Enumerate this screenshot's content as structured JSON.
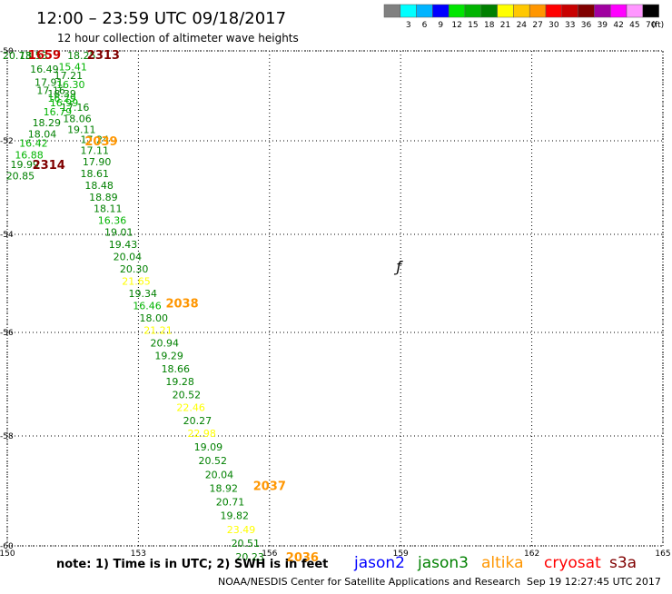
{
  "header": {
    "title": "12:00 – 23:59 UTC 09/18/2017",
    "subtitle": "12 hour collection of altimeter wave heights"
  },
  "legend": {
    "unit_label": "(ft)",
    "bins": [
      {
        "label": "",
        "color": "#808080"
      },
      {
        "label": "3",
        "color": "#00ffff"
      },
      {
        "label": "6",
        "color": "#00b4ff"
      },
      {
        "label": "9",
        "color": "#0000ff"
      },
      {
        "label": "12",
        "color": "#00e600"
      },
      {
        "label": "15",
        "color": "#00b400"
      },
      {
        "label": "18",
        "color": "#008000"
      },
      {
        "label": "21",
        "color": "#ffff00"
      },
      {
        "label": "24",
        "color": "#ffc800"
      },
      {
        "label": "27",
        "color": "#ff9600"
      },
      {
        "label": "30",
        "color": "#ff0000"
      },
      {
        "label": "33",
        "color": "#c80000"
      },
      {
        "label": "36",
        "color": "#800000"
      },
      {
        "label": "39",
        "color": "#a000a0"
      },
      {
        "label": "42",
        "color": "#ff00ff"
      },
      {
        "label": "45",
        "color": "#ff96ff"
      },
      {
        "label": "70",
        "color": "#000000"
      }
    ]
  },
  "chart_data": {
    "type": "scatter",
    "title": "12:00 – 23:59 UTC 09/18/2017",
    "subtitle": "12 hour collection of altimeter wave heights",
    "xlim": [
      150,
      165
    ],
    "ylim": [
      -60,
      -50
    ],
    "x_ticks": [
      150,
      153,
      156,
      159,
      162,
      165
    ],
    "y_ticks": [
      -50,
      -52,
      -54,
      -56,
      -58,
      -60
    ],
    "grid": true,
    "stray_mark": {
      "lon": 158.9,
      "lat": -54.65,
      "text": "ƒ"
    },
    "observations": [
      {
        "lon": 150.22,
        "lat": -50.1,
        "label": "20.73",
        "color": "#008000"
      },
      {
        "lon": 150.6,
        "lat": -50.1,
        "label": "18.53",
        "color": "#008000"
      },
      {
        "lon": 151.7,
        "lat": -50.1,
        "label": "18.25",
        "color": "#008000"
      },
      {
        "lon": 151.5,
        "lat": -50.35,
        "label": "15.41",
        "color": "#00b400"
      },
      {
        "lon": 150.85,
        "lat": -50.4,
        "label": "16.49",
        "color": "#008000"
      },
      {
        "lon": 151.4,
        "lat": -50.55,
        "label": "17.21",
        "color": "#008000"
      },
      {
        "lon": 150.95,
        "lat": -50.7,
        "label": "17.91",
        "color": "#008000"
      },
      {
        "lon": 151.45,
        "lat": -50.75,
        "label": "16.30",
        "color": "#00b400"
      },
      {
        "lon": 151.0,
        "lat": -50.88,
        "label": "17.16",
        "color": "#008000"
      },
      {
        "lon": 151.25,
        "lat": -50.95,
        "label": "18.39",
        "color": "#008000"
      },
      {
        "lon": 151.25,
        "lat": -51.05,
        "label": "16.29",
        "color": "#00b400"
      },
      {
        "lon": 151.3,
        "lat": -51.15,
        "label": "16.99",
        "color": "#00b400"
      },
      {
        "lon": 151.55,
        "lat": -51.25,
        "label": "17.16",
        "color": "#008000"
      },
      {
        "lon": 151.15,
        "lat": -51.35,
        "label": "16.79",
        "color": "#00b400"
      },
      {
        "lon": 151.6,
        "lat": -51.5,
        "label": "18.06",
        "color": "#008000"
      },
      {
        "lon": 150.9,
        "lat": -51.6,
        "label": "18.29",
        "color": "#008000"
      },
      {
        "lon": 151.7,
        "lat": -51.75,
        "label": "19.11",
        "color": "#008000"
      },
      {
        "lon": 150.8,
        "lat": -51.85,
        "label": "18.04",
        "color": "#008000"
      },
      {
        "lon": 152.0,
        "lat": -51.97,
        "label": "17.24",
        "color": "#008000"
      },
      {
        "lon": 150.6,
        "lat": -52.05,
        "label": "16.42",
        "color": "#00b400"
      },
      {
        "lon": 152.0,
        "lat": -52.2,
        "label": "17.11",
        "color": "#008000"
      },
      {
        "lon": 150.5,
        "lat": -52.3,
        "label": "16.88",
        "color": "#00b400"
      },
      {
        "lon": 152.05,
        "lat": -52.45,
        "label": "17.90",
        "color": "#008000"
      },
      {
        "lon": 150.4,
        "lat": -52.5,
        "label": "19.99",
        "color": "#008000"
      },
      {
        "lon": 152.0,
        "lat": -52.7,
        "label": "18.61",
        "color": "#008000"
      },
      {
        "lon": 150.3,
        "lat": -52.75,
        "label": "20.85",
        "color": "#008000"
      },
      {
        "lon": 152.1,
        "lat": -52.95,
        "label": "18.48",
        "color": "#008000"
      },
      {
        "lon": 152.2,
        "lat": -53.2,
        "label": "18.89",
        "color": "#008000"
      },
      {
        "lon": 152.3,
        "lat": -53.45,
        "label": "18.11",
        "color": "#008000"
      },
      {
        "lon": 152.4,
        "lat": -53.7,
        "label": "16.36",
        "color": "#00b400"
      },
      {
        "lon": 152.55,
        "lat": -53.95,
        "label": "19.01",
        "color": "#008000"
      },
      {
        "lon": 152.65,
        "lat": -54.2,
        "label": "19.43",
        "color": "#008000"
      },
      {
        "lon": 152.75,
        "lat": -54.45,
        "label": "20.04",
        "color": "#008000"
      },
      {
        "lon": 152.9,
        "lat": -54.7,
        "label": "20.30",
        "color": "#008000"
      },
      {
        "lon": 152.95,
        "lat": -54.95,
        "label": "21.65",
        "color": "#ffff00"
      },
      {
        "lon": 153.1,
        "lat": -55.2,
        "label": "19.34",
        "color": "#008000"
      },
      {
        "lon": 153.2,
        "lat": -55.45,
        "label": "16.46",
        "color": "#00b400"
      },
      {
        "lon": 153.35,
        "lat": -55.7,
        "label": "18.00",
        "color": "#008000"
      },
      {
        "lon": 153.45,
        "lat": -55.95,
        "label": "21.21",
        "color": "#ffff00"
      },
      {
        "lon": 153.6,
        "lat": -56.2,
        "label": "20.94",
        "color": "#008000"
      },
      {
        "lon": 153.7,
        "lat": -56.45,
        "label": "19.29",
        "color": "#008000"
      },
      {
        "lon": 153.85,
        "lat": -56.7,
        "label": "18.66",
        "color": "#008000"
      },
      {
        "lon": 153.95,
        "lat": -56.95,
        "label": "19.28",
        "color": "#008000"
      },
      {
        "lon": 154.1,
        "lat": -57.2,
        "label": "20.52",
        "color": "#008000"
      },
      {
        "lon": 154.2,
        "lat": -57.45,
        "label": "22.46",
        "color": "#ffff00"
      },
      {
        "lon": 154.35,
        "lat": -57.7,
        "label": "20.27",
        "color": "#008000"
      },
      {
        "lon": 154.45,
        "lat": -57.95,
        "label": "22.98",
        "color": "#ffff00"
      },
      {
        "lon": 154.6,
        "lat": -58.2,
        "label": "19.09",
        "color": "#008000"
      },
      {
        "lon": 154.7,
        "lat": -58.45,
        "label": "20.52",
        "color": "#008000"
      },
      {
        "lon": 154.85,
        "lat": -58.7,
        "label": "20.04",
        "color": "#008000"
      },
      {
        "lon": 154.95,
        "lat": -58.95,
        "label": "18.92",
        "color": "#008000"
      },
      {
        "lon": 155.1,
        "lat": -59.2,
        "label": "20.71",
        "color": "#008000"
      },
      {
        "lon": 155.2,
        "lat": -59.45,
        "label": "19.82",
        "color": "#008000"
      },
      {
        "lon": 155.35,
        "lat": -59.7,
        "label": "23.49",
        "color": "#ffff00"
      },
      {
        "lon": 155.45,
        "lat": -59.95,
        "label": "20.51",
        "color": "#008000"
      },
      {
        "lon": 155.55,
        "lat": -60.2,
        "label": "20.23",
        "color": "#008000"
      }
    ],
    "pass_times": [
      {
        "lon": 150.85,
        "lat": -50.08,
        "label": "1659",
        "color": "#c80000"
      },
      {
        "lon": 152.2,
        "lat": -50.08,
        "label": "2313",
        "color": "#800000"
      },
      {
        "lon": 152.15,
        "lat": -52.0,
        "label": "2039",
        "color": "#ff9600"
      },
      {
        "lon": 150.95,
        "lat": -52.5,
        "label": "2314",
        "color": "#800000"
      },
      {
        "lon": 154.0,
        "lat": -55.4,
        "label": "2038",
        "color": "#ff9600"
      },
      {
        "lon": 156.0,
        "lat": -58.9,
        "label": "2037",
        "color": "#ff9600"
      },
      {
        "lon": 156.75,
        "lat": -60.2,
        "label": "2036",
        "color": "#ff9600"
      }
    ]
  },
  "footer": {
    "note": "note:  1) Time is in UTC; 2) SWH is in feet",
    "satellites": [
      {
        "name": "jason2",
        "color": "#0000ff"
      },
      {
        "name": "jason3",
        "color": "#008000"
      },
      {
        "name": "altika",
        "color": "#ff9600"
      },
      {
        "name": "cryosat",
        "color": "#ff0000"
      },
      {
        "name": "s3a",
        "color": "#800000"
      }
    ],
    "credit": "NOAA/NESDIS Center for Satellite Applications and Research",
    "timestamp": "Sep 19 12:27:45 UTC 2017"
  }
}
